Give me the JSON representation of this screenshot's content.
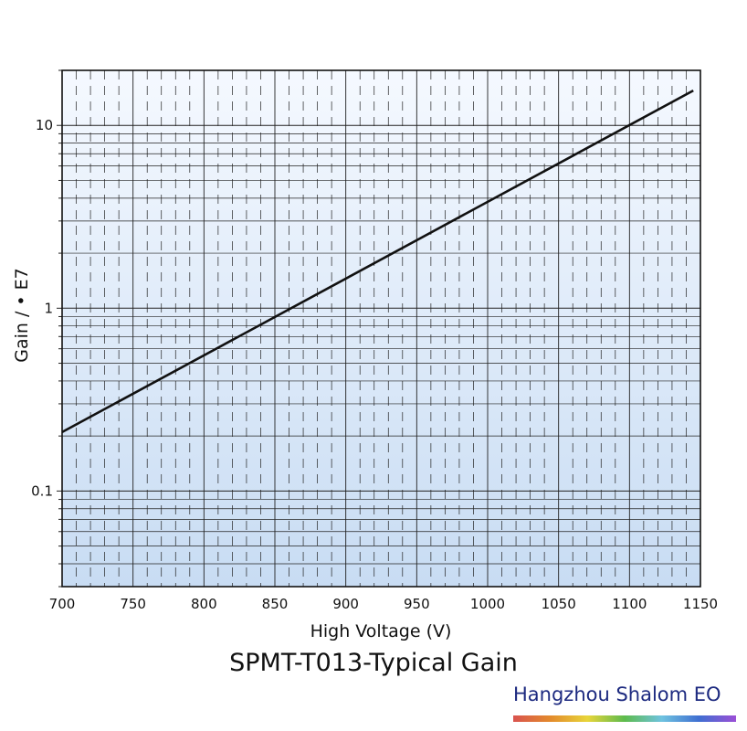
{
  "chart_data": {
    "type": "line",
    "title": "SPMT-T013-Typical Gain",
    "xlabel": "High Voltage (V)",
    "ylabel": "Gain / • E7",
    "xlim": [
      700,
      1150
    ],
    "ylim": [
      0.03,
      20
    ],
    "yscale": "log",
    "x_ticks": [
      "700",
      "750",
      "800",
      "850",
      "900",
      "950",
      "1000",
      "1050",
      "1100",
      "1150"
    ],
    "y_ticks": [
      "0.1",
      "1",
      "10"
    ],
    "grid": true,
    "series": [
      {
        "x": [
          700,
          1145
        ],
        "y": [
          0.21,
          15.5
        ]
      }
    ],
    "colors": {
      "line": "#111111",
      "plot_top": "#f5f9ff",
      "plot_bottom": "#c8dcf3",
      "grid": "#222222"
    }
  },
  "brand": {
    "text": "Hangzhou Shalom EO",
    "color": "#1d2a80",
    "bar_colors": [
      "#d9534f",
      "#e38a2c",
      "#e8d53a",
      "#5dbb4d",
      "#6fc3e0",
      "#3f6fd1",
      "#9b4fd6"
    ]
  }
}
